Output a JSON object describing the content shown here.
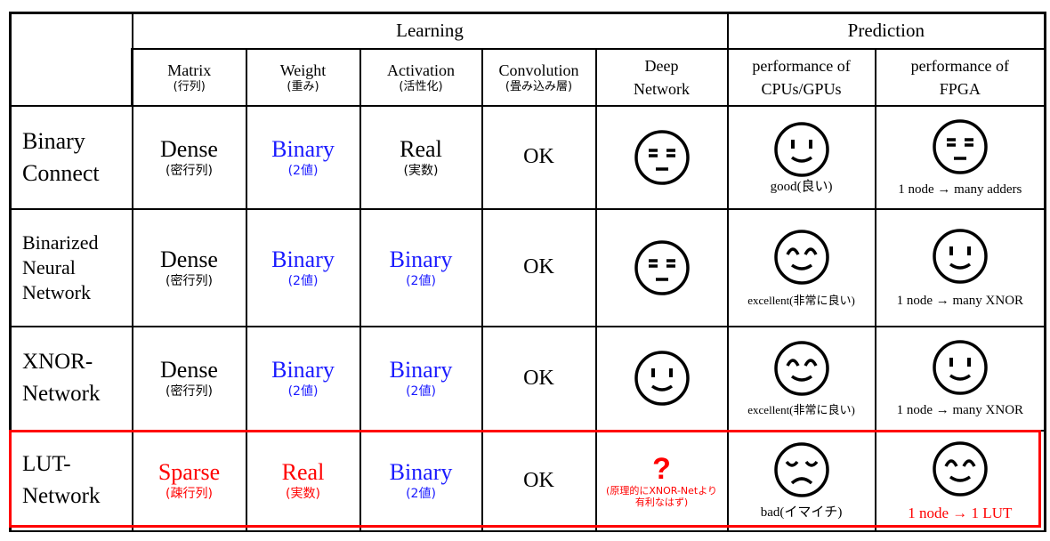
{
  "header": {
    "learning": "Learning",
    "prediction": "Prediction",
    "columns": [
      {
        "en": "Matrix",
        "jp": "(行列)"
      },
      {
        "en": "Weight",
        "jp": "(重み)"
      },
      {
        "en": "Activation",
        "jp": "(活性化)"
      },
      {
        "en": "Convolution",
        "jp": "(畳み込み層)"
      },
      {
        "line1": "Deep",
        "line2": "Network"
      },
      {
        "line1": "performance of",
        "line2": "CPUs/GPUs"
      },
      {
        "line1": "performance of",
        "line2": "FPGA"
      }
    ]
  },
  "rows": [
    {
      "name_line1": "Binary",
      "name_line2": "Connect",
      "matrix": {
        "v": "Dense",
        "s": "(密行列)"
      },
      "weight": {
        "v": "Binary",
        "s": "(2値)"
      },
      "activation": {
        "v": "Real",
        "s": "(実数)"
      },
      "conv": "OK",
      "deep_face": "neutral-face-icon",
      "cpu_face": "smile-face-icon",
      "cpu_caption": "good(良い)",
      "fpga_face": "neutral-face-icon",
      "fpga_caption": "1 node → many adders"
    },
    {
      "name_line1": "Binarized",
      "name_line2": "Neural",
      "name_line3": "Network",
      "matrix": {
        "v": "Dense",
        "s": "(密行列)"
      },
      "weight": {
        "v": "Binary",
        "s": "(2値)"
      },
      "activation": {
        "v": "Binary",
        "s": "(2値)"
      },
      "conv": "OK",
      "deep_face": "neutral-face-icon",
      "cpu_face": "happy-face-icon",
      "cpu_caption": "excellent(非常に良い)",
      "fpga_face": "smile-face-icon",
      "fpga_caption": "1 node → many XNOR"
    },
    {
      "name_line1": "XNOR-",
      "name_line2": "Network",
      "matrix": {
        "v": "Dense",
        "s": "(密行列)"
      },
      "weight": {
        "v": "Binary",
        "s": "(2値)"
      },
      "activation": {
        "v": "Binary",
        "s": "(2値)"
      },
      "conv": "OK",
      "deep_face": "smile-face-icon",
      "cpu_face": "happy-face-icon",
      "cpu_caption": "excellent(非常に良い)",
      "fpga_face": "smile-face-icon",
      "fpga_caption": "1 node → many XNOR"
    },
    {
      "name_line1": "LUT-",
      "name_line2": "Network",
      "matrix": {
        "v": "Sparse",
        "s": "(疎行列)"
      },
      "weight": {
        "v": "Real",
        "s": "(実数)"
      },
      "activation": {
        "v": "Binary",
        "s": "(2値)"
      },
      "conv": "OK",
      "deep_q": "?",
      "deep_note1": "(原理的にXNOR-Netより",
      "deep_note2": "有利なはず)",
      "cpu_face": "sad-face-icon",
      "cpu_caption": "bad(イマイチ)",
      "fpga_face": "happy-face-icon",
      "fpga_caption": "1 node → 1 LUT"
    }
  ],
  "colors": {
    "blue": "#1a1aff",
    "red": "#ff0000",
    "border": "#000000"
  }
}
